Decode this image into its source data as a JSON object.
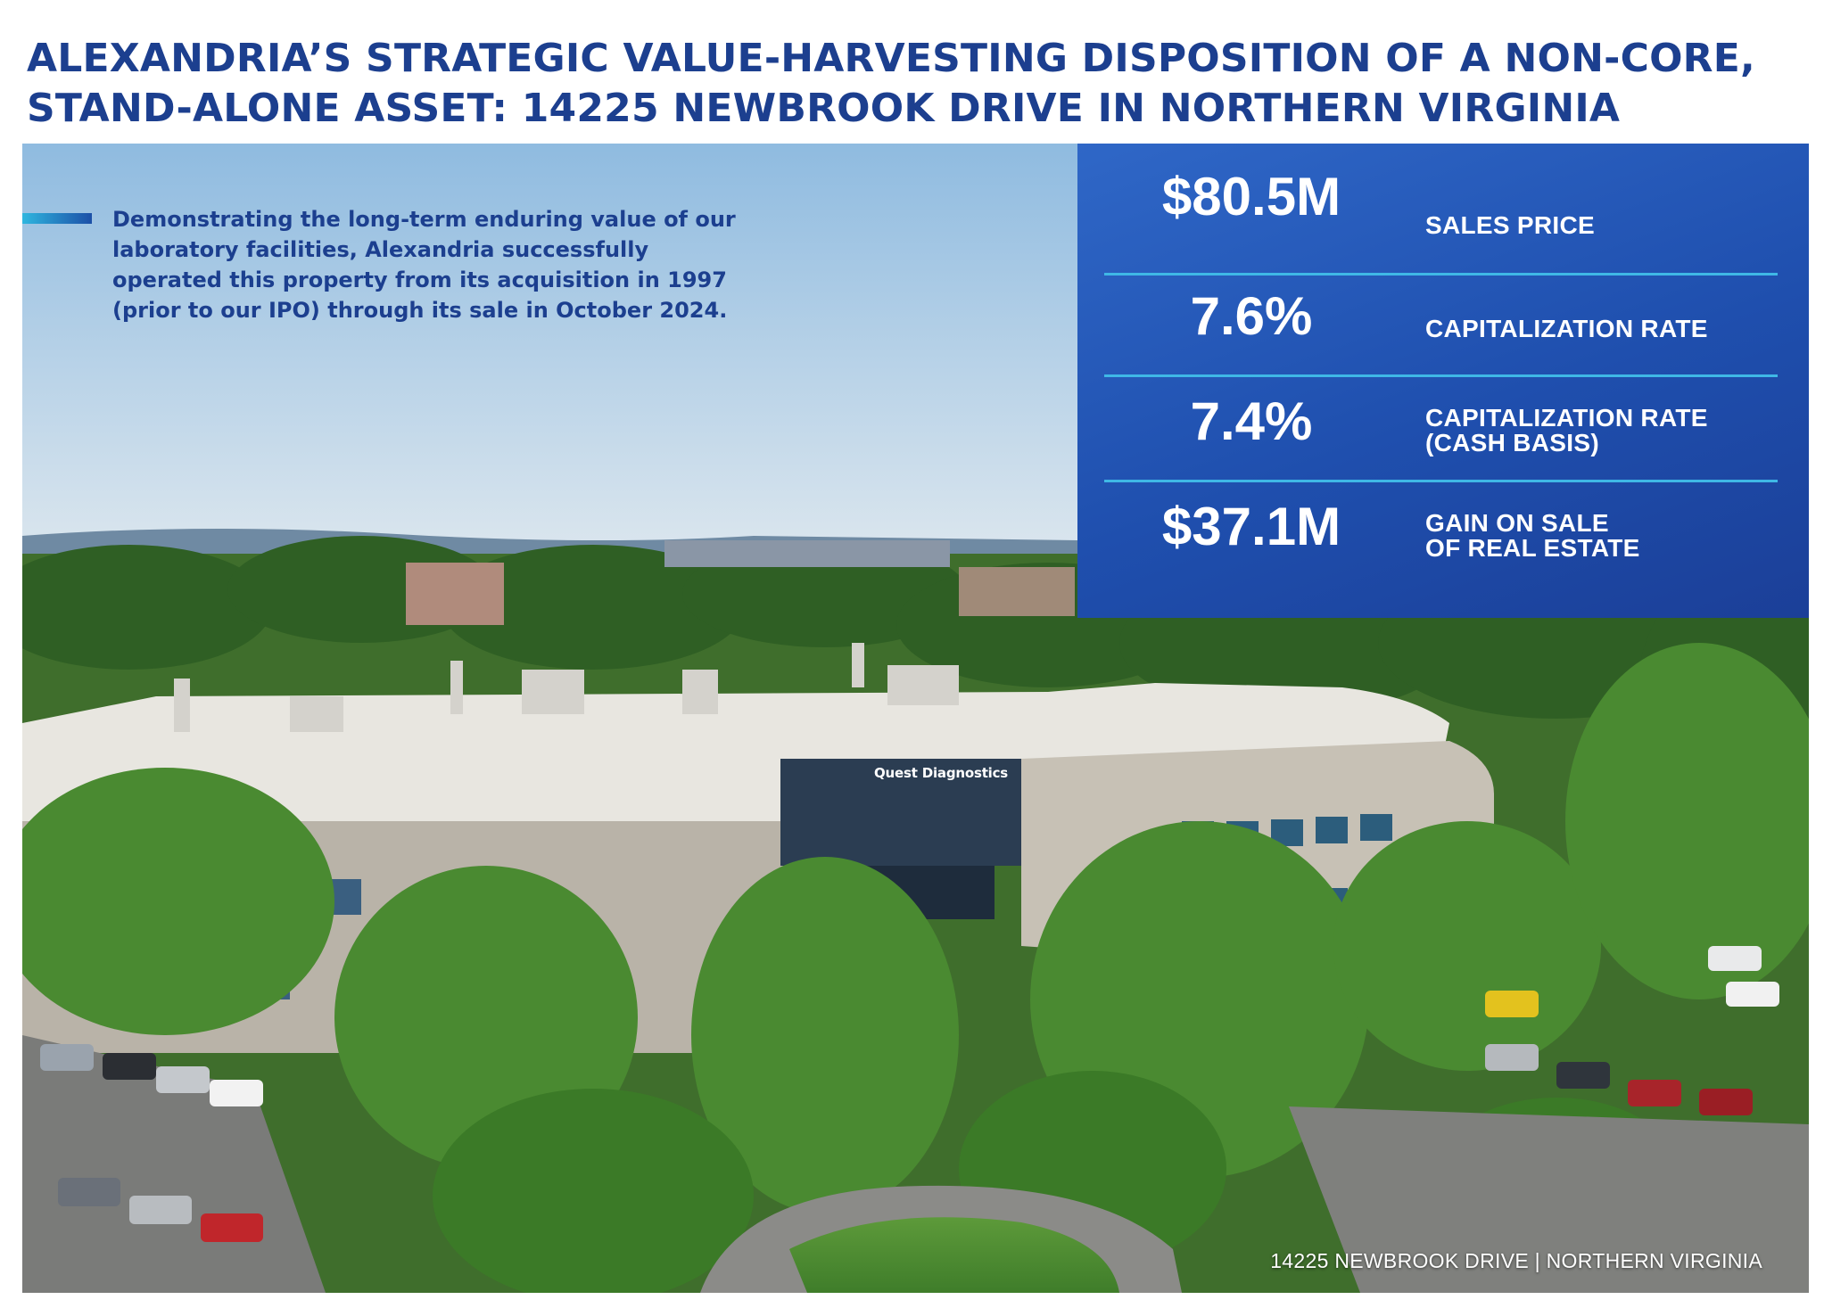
{
  "title": {
    "line1": "ALEXANDRIA’S STRATEGIC VALUE-HARVESTING DISPOSITION OF A NON-CORE,",
    "line2": "STAND-ALONE ASSET: 14225 NEWBROOK DRIVE IN NORTHERN VIRGINIA"
  },
  "intro": "Demonstrating the long-term enduring value of our laboratory facilities, Alexandria successfully operated this property from its acquisition in 1997 (prior to our IPO) through its sale in October 2024.",
  "stats": [
    {
      "value": "$80.5M",
      "label": "SALES PRICE"
    },
    {
      "value": "7.6%",
      "label": "CAPITALIZATION RATE"
    },
    {
      "value": "7.4%",
      "label": "CAPITALIZATION RATE\n(CASH BASIS)"
    },
    {
      "value": "$37.1M",
      "label": "GAIN ON SALE\nOF REAL ESTATE"
    }
  ],
  "building_sign": "Quest Diagnostics",
  "caption": "14225 NEWBROOK DRIVE | NORTHERN VIRGINIA",
  "colors": {
    "title": "#1c3f8f",
    "stats_panel": "#2358b8",
    "divider": "#3fb8e6"
  }
}
